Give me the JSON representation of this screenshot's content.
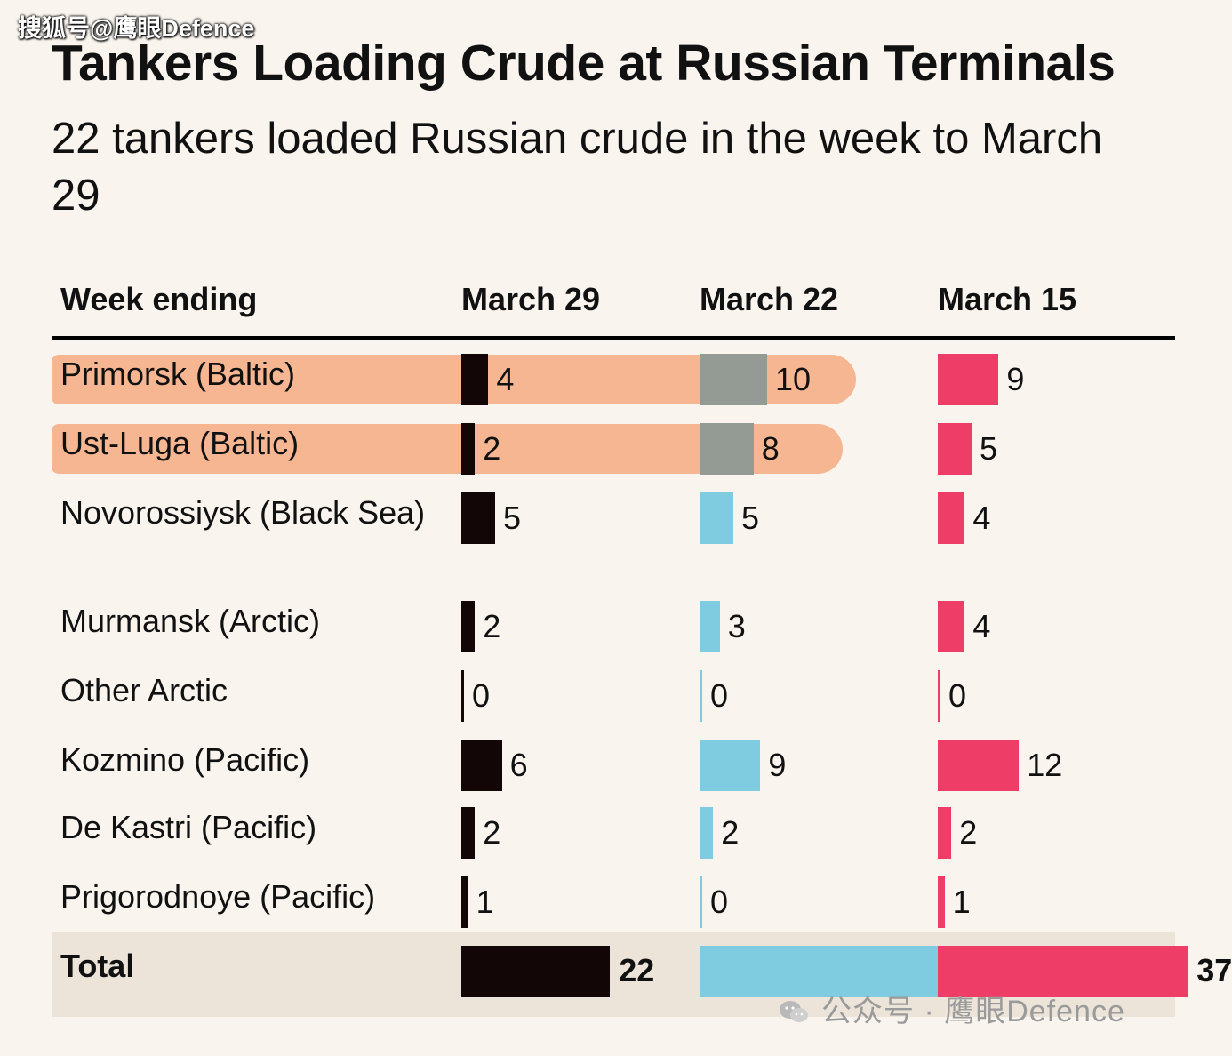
{
  "watermark_top": "搜狐号@鹰眼Defence",
  "watermark_bottom": "公众号 · 鹰眼Defence",
  "colors": {
    "background": "#f9f4ee",
    "march29": "#130606",
    "march22": "#7fcbe0",
    "march22_highlighted": "#949a94",
    "march15": "#ee3e68",
    "highlight": "#f6b08a",
    "total_band": "#ede4d9"
  },
  "chart_data": {
    "type": "bar",
    "title": "Tankers Loading Crude at Russian Terminals",
    "subtitle": "22 tankers loaded Russian crude in the week to March 29",
    "header_label": "Week ending",
    "categories": [
      "Primorsk (Baltic)",
      "Ust-Luga (Baltic)",
      "Novorossiysk (Black Sea)",
      "Murmansk (Arctic)",
      "Other Arctic",
      "Kozmino (Pacific)",
      "De Kastri (Pacific)",
      "Prigorodnoye (Pacific)"
    ],
    "highlighted_categories": [
      "Primorsk (Baltic)",
      "Ust-Luga (Baltic)"
    ],
    "series": [
      {
        "name": "March 29",
        "values": [
          4,
          2,
          5,
          2,
          0,
          6,
          2,
          1
        ],
        "total": 22
      },
      {
        "name": "March 22",
        "values": [
          10,
          8,
          5,
          3,
          0,
          9,
          2,
          0
        ],
        "total": 37
      },
      {
        "name": "March 15",
        "values": [
          9,
          5,
          4,
          4,
          0,
          12,
          2,
          1
        ],
        "total": 37
      }
    ],
    "total_label": "Total",
    "grid": false,
    "legend": "column headers"
  }
}
